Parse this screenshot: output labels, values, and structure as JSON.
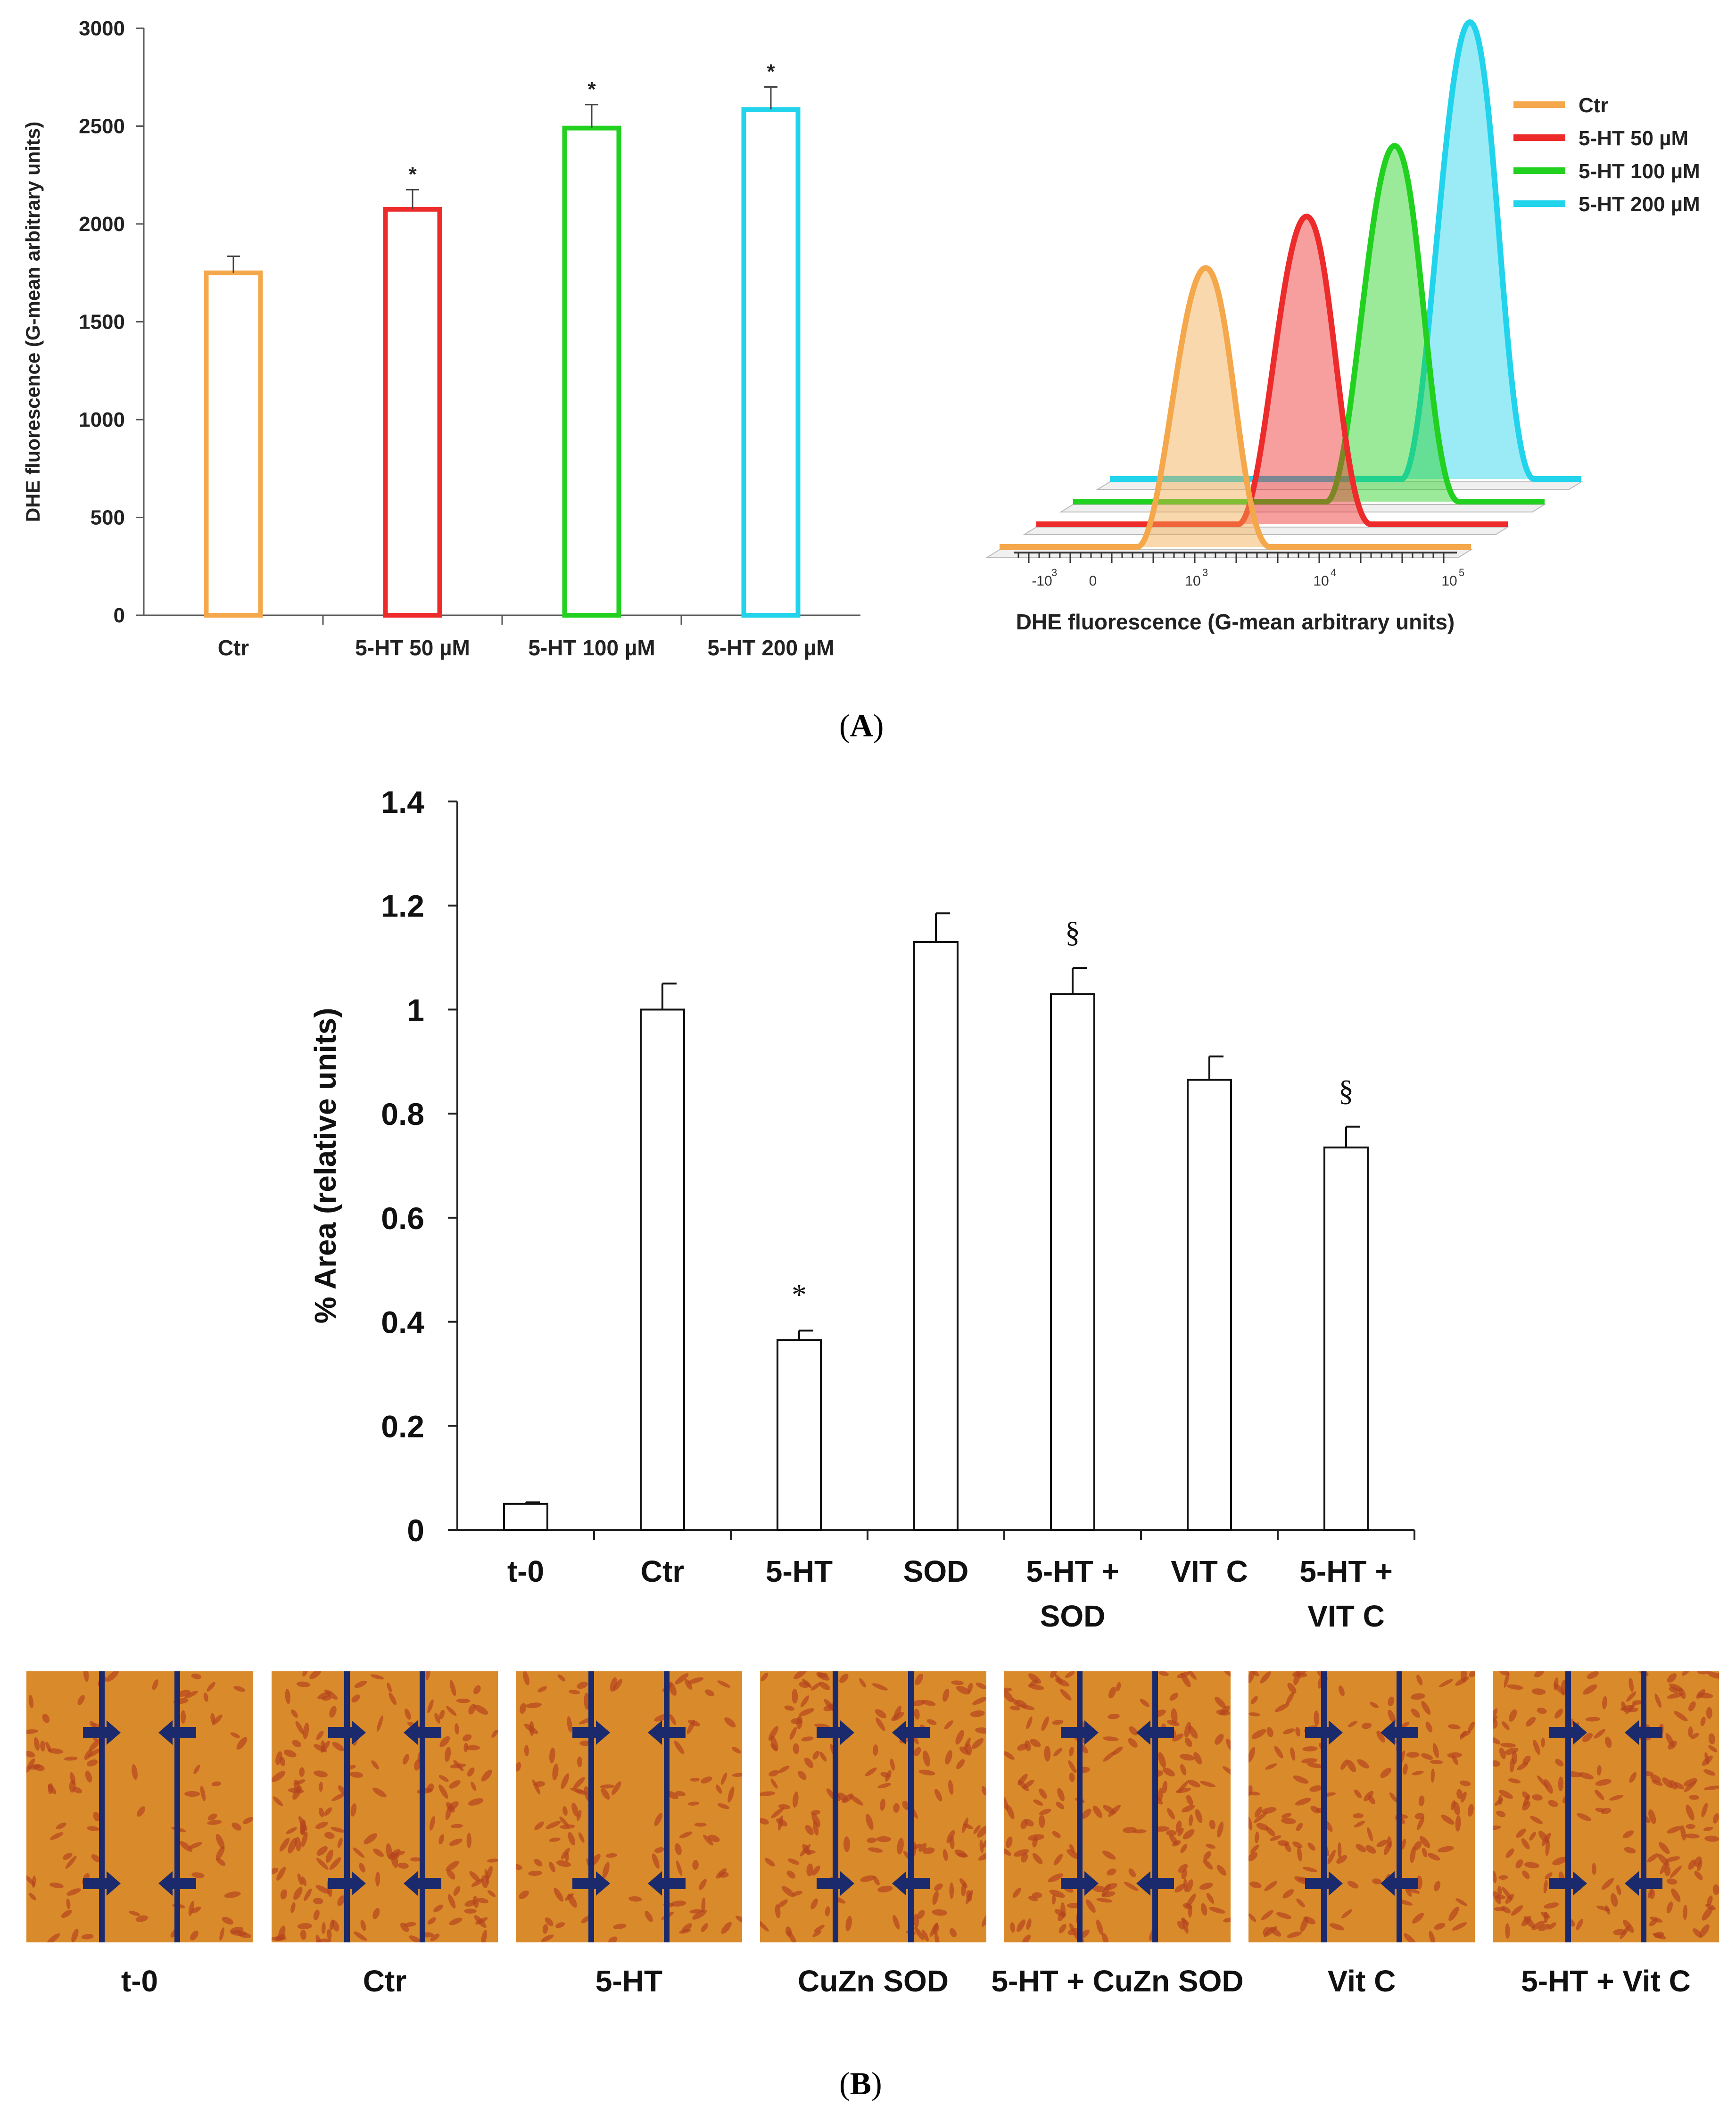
{
  "panel_a": {
    "caption": "A",
    "bar_chart": {
      "ylabel": "DHE fluorescence (G-mean arbitrary units)",
      "yticks": [
        "0",
        "500",
        "1000",
        "1500",
        "2000",
        "2500",
        "3000"
      ]
    },
    "histogram": {
      "xlabel": "DHE fluorescence (G-mean arbitrary units)",
      "xticks": [
        "-10",
        "0",
        "10",
        "10",
        "10"
      ],
      "xtick_exponents": [
        "3",
        "",
        "3",
        "4",
        "5"
      ]
    }
  },
  "panel_b": {
    "caption": "B",
    "bar_chart": {
      "ylabel": "% Area (relative units)",
      "yticks": [
        "0",
        "0.2",
        "0.4",
        "0.6",
        "0.8",
        "1",
        "1.2",
        "1.4"
      ]
    },
    "photos": [
      {
        "label": "t-0"
      },
      {
        "label": "Ctr"
      },
      {
        "label": "5-HT"
      },
      {
        "label": "CuZn SOD"
      },
      {
        "label": "5-HT + CuZn SOD"
      },
      {
        "label": "Vit C"
      },
      {
        "label": "5-HT + Vit C"
      }
    ]
  },
  "colors": {
    "ctr": "#f4a84b",
    "ht50": "#ee2b2b",
    "ht100": "#22d11f",
    "ht200": "#22d3ec",
    "arrow": "#1a2a6c",
    "photo_bg": "#d98a2a"
  },
  "chart_data": [
    {
      "type": "bar",
      "title": "",
      "xlabel": "",
      "ylabel": "DHE fluorescence (G-mean arbitrary units)",
      "ylim": [
        0,
        3000
      ],
      "categories": [
        "Ctr",
        "5-HT 50 µM",
        "5-HT 100 µM",
        "5-HT 200 µM"
      ],
      "values": [
        1750,
        2075,
        2490,
        2585
      ],
      "errors": [
        85,
        100,
        120,
        115
      ],
      "annotations": [
        "",
        "*",
        "*",
        "*"
      ]
    },
    {
      "type": "area",
      "title": "",
      "xlabel": "DHE fluorescence (G-mean arbitrary units)",
      "xscale": "biexponential",
      "series": [
        {
          "name": "Ctr",
          "peak_log10": 3.1,
          "relative_height": 0.58
        },
        {
          "name": "5-HT 50 µM",
          "peak_log10": 3.6,
          "relative_height": 0.64
        },
        {
          "name": "5-HT 100 µM",
          "peak_log10": 4.0,
          "relative_height": 0.74
        },
        {
          "name": "5-HT 200 µM",
          "peak_log10": 4.3,
          "relative_height": 0.95
        }
      ],
      "legend": "top-right"
    },
    {
      "type": "bar",
      "title": "",
      "xlabel": "",
      "ylabel": "% Area (relative units)",
      "ylim": [
        0,
        1.4
      ],
      "categories": [
        "t-0",
        "Ctr",
        "5-HT",
        "SOD",
        "5-HT + SOD",
        "VIT C",
        "5-HT + VIT C"
      ],
      "category_lines": [
        [
          "t-0"
        ],
        [
          "Ctr"
        ],
        [
          "5-HT"
        ],
        [
          "SOD"
        ],
        [
          "5-HT +",
          "SOD"
        ],
        [
          "VIT C"
        ],
        [
          "5-HT +",
          "VIT C"
        ]
      ],
      "values": [
        0.05,
        1.0,
        0.365,
        1.13,
        1.03,
        0.865,
        0.735
      ],
      "errors": [
        0.003,
        0.05,
        0.018,
        0.055,
        0.05,
        0.045,
        0.04
      ],
      "annotations": [
        "",
        "",
        "*",
        "",
        "§",
        "",
        "§"
      ]
    }
  ]
}
